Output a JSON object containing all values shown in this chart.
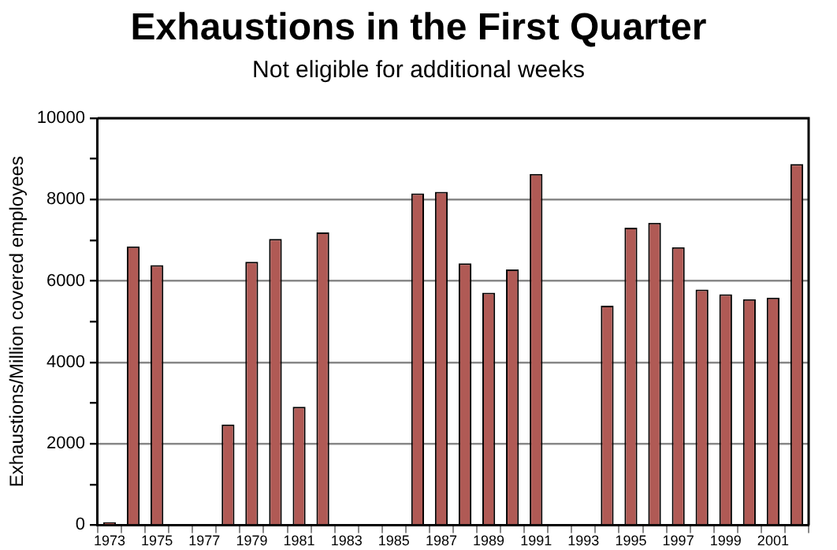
{
  "chart_data": {
    "type": "bar",
    "title": "Exhaustions in the First Quarter",
    "subtitle": "Not eligible for additional weeks",
    "ylabel": "Exhaustions/Million covered employees",
    "categories": [
      "1973",
      null,
      "1975",
      null,
      "1977",
      null,
      "1979",
      null,
      "1981",
      null,
      "1983",
      null,
      "1985",
      null,
      "1987",
      null,
      "1989",
      null,
      "1991",
      null,
      "1993",
      null,
      "1995",
      null,
      "1997",
      null,
      "1999",
      null,
      "2001",
      null
    ],
    "values": [
      70,
      6850,
      6390,
      null,
      null,
      2470,
      6470,
      7030,
      2910,
      7190,
      null,
      null,
      null,
      8150,
      8190,
      6430,
      5710,
      6280,
      8630,
      null,
      null,
      5390,
      7310,
      7430,
      6830,
      5790,
      5670,
      5550,
      5590,
      8870
    ],
    "color": "#b05a55",
    "ylim": [
      0,
      10000
    ],
    "yticks": [
      0,
      {
        "value": 1000,
        "label": null
      },
      2000,
      {
        "value": 3000,
        "label": null
      },
      4000,
      {
        "value": 5000,
        "label": null
      },
      6000,
      {
        "value": 7000,
        "label": null
      },
      8000,
      {
        "value": 9000,
        "label": null
      },
      10000
    ],
    "grid": "y",
    "legend": false
  }
}
